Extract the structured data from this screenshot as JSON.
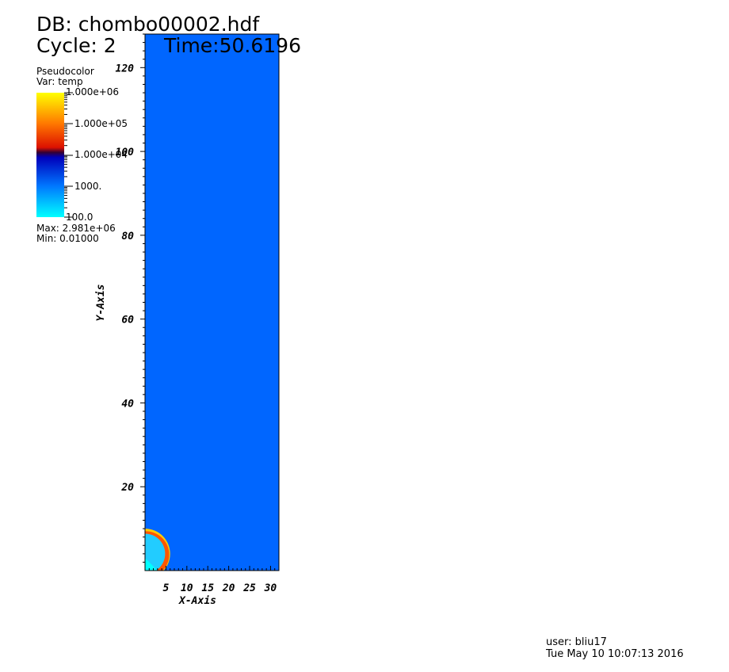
{
  "header": {
    "db_label": "DB: chombo00002.hdf",
    "cycle_label": "Cycle: 2",
    "time_label": "Time:50.6196"
  },
  "legend": {
    "plot_type": "Pseudocolor",
    "var_label": "Var: temp",
    "tick_labels": [
      "1.000e+06",
      "1.000e+05",
      "1.000e+04",
      "1000.",
      "100.0"
    ],
    "max_label": "Max:  2.981e+06",
    "min_label": "Min:  0.01000",
    "colors": [
      "#ffff00",
      "#ff6600",
      "#cc0000",
      "#0000aa",
      "#0066ff",
      "#00ffff"
    ]
  },
  "footer": {
    "user_label": "user: bliu17",
    "date_label": "Tue May 10 10:07:13 2016"
  },
  "chart_data": {
    "type": "heatmap",
    "variable": "temp",
    "xlabel": "X-Axis",
    "ylabel": "Y-Axis",
    "xlim": [
      0,
      32
    ],
    "ylim": [
      0,
      128
    ],
    "x_ticks": [
      5,
      10,
      15,
      20,
      25,
      30
    ],
    "y_ticks": [
      20,
      40,
      60,
      80,
      100,
      120
    ],
    "background_color": "#0066ff",
    "color_scale": "log",
    "color_range": [
      100,
      1000000
    ],
    "features": [
      {
        "kind": "shock-shell",
        "center": [
          0,
          4
        ],
        "outer_radius": 6,
        "inner_radius": 4.8,
        "colors": [
          "#ffcc00",
          "#ff5500"
        ]
      },
      {
        "kind": "hot-interior",
        "center": [
          0,
          4
        ],
        "radius": 4.8,
        "color": "#22ccff"
      },
      {
        "kind": "cold-wedge",
        "corner": [
          0,
          0
        ],
        "size": 3,
        "color": "#00ffff"
      }
    ]
  }
}
